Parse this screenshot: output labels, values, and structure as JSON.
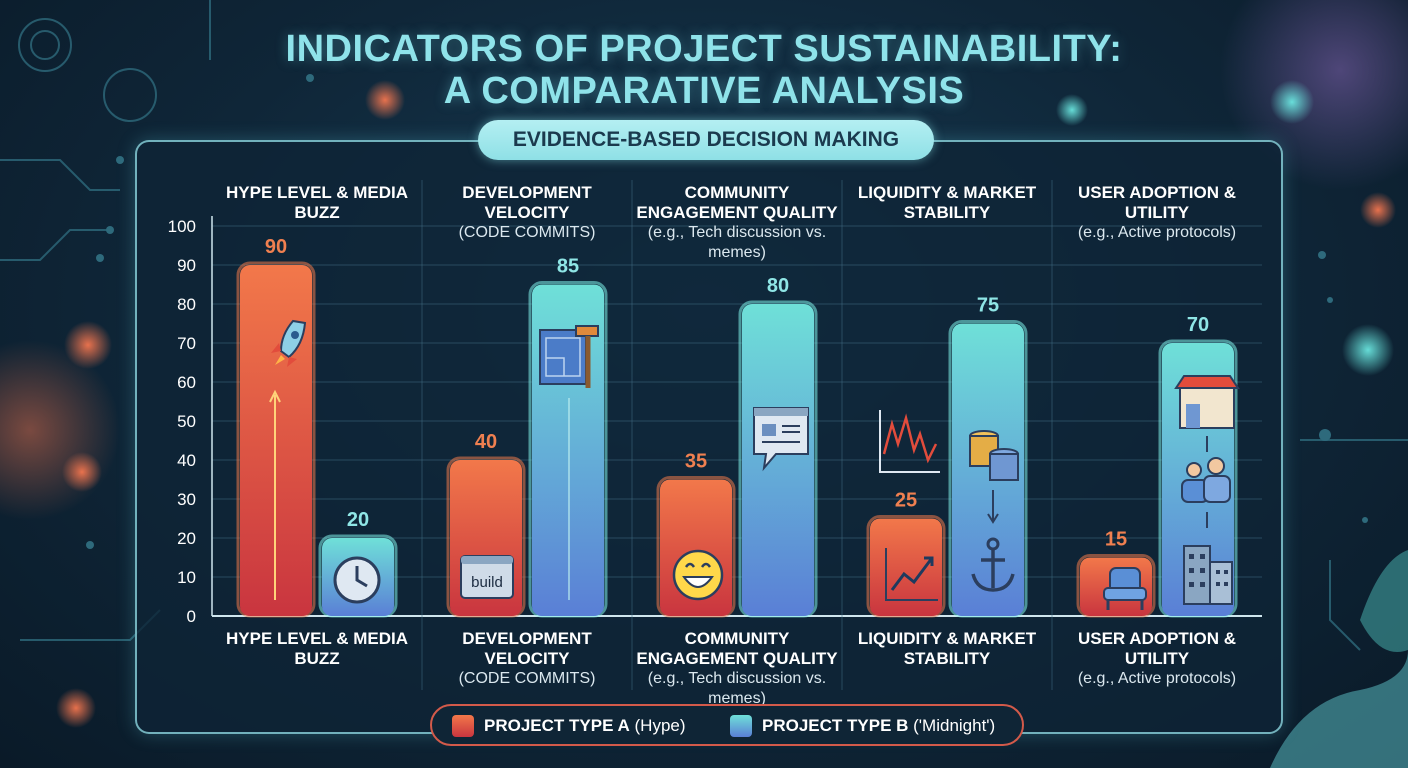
{
  "title_line1": "INDICATORS OF PROJECT SUSTAINABILITY:",
  "title_line2": "A COMPARATIVE ANALYSIS",
  "subtitle": "EVIDENCE-BASED DECISION MAKING",
  "colors": {
    "series_a_top": "#f2784a",
    "series_a_bottom": "#c9353f",
    "series_b_top": "#6fe0d8",
    "series_b_bottom": "#5a7fd6",
    "label_a": "#f08050",
    "label_b": "#8fe6e6"
  },
  "top_labels": [
    {
      "name": "HYPE LEVEL & MEDIA BUZZ",
      "sub": ""
    },
    {
      "name": "DEVELOPMENT VELOCITY",
      "sub": "(CODE COMMITS)"
    },
    {
      "name": "COMMUNITY ENGAGEMENT QUALITY",
      "sub": "(e.g., Tech discussion vs. memes)"
    },
    {
      "name": "LIQUIDITY & MARKET STABILITY",
      "sub": ""
    },
    {
      "name": "USER ADOPTION & UTILITY",
      "sub": "(e.g., Active protocols)"
    }
  ],
  "bottom_labels": [
    {
      "name": "HYPE LEVEL & MEDIA BUZZ",
      "sub": ""
    },
    {
      "name": "DEVELOPMENT VELOCITY",
      "sub": "(CODE COMMITS)"
    },
    {
      "name": "COMMUNITY ENGAGEMENT QUALITY",
      "sub": "(e.g., Tech discussion vs. memes)"
    },
    {
      "name": "LIQUIDITY & MARKET STABILITY",
      "sub": ""
    },
    {
      "name": "USER ADOPTION & UTILITY",
      "sub": "(e.g., Active protocols)"
    }
  ],
  "chart_data": {
    "type": "bar",
    "title": "INDICATORS OF PROJECT SUSTAINABILITY: A COMPARATIVE ANALYSIS",
    "subtitle": "EVIDENCE-BASED DECISION MAKING",
    "categories": [
      "HYPE LEVEL & MEDIA BUZZ",
      "DEVELOPMENT VELOCITY (CODE COMMITS)",
      "COMMUNITY ENGAGEMENT QUALITY (e.g., Tech discussion vs. memes)",
      "LIQUIDITY & MARKET STABILITY",
      "USER ADOPTION & UTILITY (e.g., Active protocols)"
    ],
    "series": [
      {
        "name": "PROJECT TYPE A (Hype)",
        "values": [
          90,
          40,
          35,
          25,
          15
        ]
      },
      {
        "name": "PROJECT TYPE B ('Midnight')",
        "values": [
          20,
          85,
          80,
          75,
          70
        ]
      }
    ],
    "ylim": [
      0,
      100
    ],
    "yticks": [
      "0",
      "10",
      "20",
      "30",
      "40",
      "50",
      "60",
      "70",
      "80",
      "90",
      "100"
    ],
    "xlabel": "",
    "ylabel": "",
    "grid": true,
    "legend_position": "bottom-center"
  },
  "legend": {
    "a_bold": "PROJECT TYPE A",
    "a_rest": " (Hype)",
    "b_bold": "PROJECT TYPE B",
    "b_rest": " ('Midnight')"
  },
  "icons": {
    "a": [
      "rocket-icon",
      "build-icon",
      "laughing-emoji-icon",
      "volatile-chart-icon",
      "chair-icon"
    ],
    "b": [
      "clock-icon",
      "blueprint-hammer-icon",
      "chat-document-icon",
      "coins-anchor-icon",
      "store-people-building-icon"
    ]
  }
}
